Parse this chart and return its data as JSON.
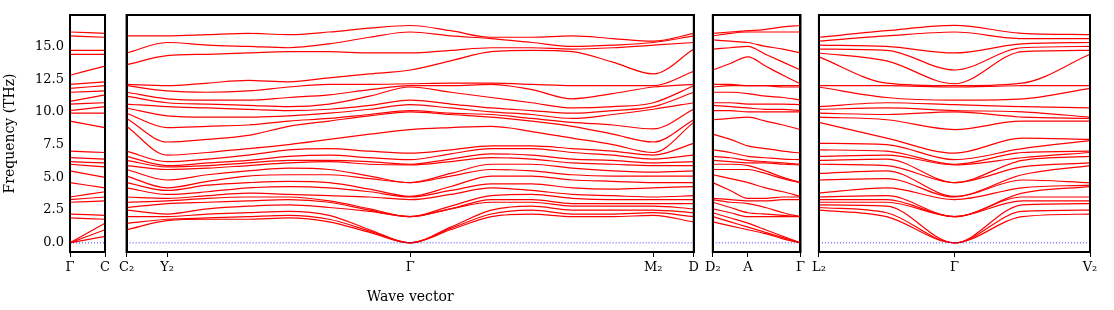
{
  "chart_data": [
    {
      "type": "line",
      "ylabel": "Frequency (THz)",
      "categories": [
        "Γ",
        "C"
      ],
      "ylim": [
        -0.7,
        17.4
      ],
      "yticks": [
        {
          "value": 0,
          "label": "0.0"
        },
        {
          "value": 2.5,
          "label": "2.5"
        },
        {
          "value": 5,
          "label": "5.0"
        },
        {
          "value": 7.5,
          "label": "7.5"
        },
        {
          "value": 10,
          "label": "10.0"
        },
        {
          "value": 12.5,
          "label": "12.5"
        },
        {
          "value": 15,
          "label": "15.0"
        }
      ],
      "grid": false,
      "legend": false,
      "marker": "none",
      "ref_lines": [
        {
          "axis": "y",
          "value": 0,
          "color": "#0000ff",
          "line_style": "dotted"
        }
      ],
      "series": [
        {
          "color": "#ff0000",
          "values": [
            0,
            0.5
          ]
        },
        {
          "color": "#ff0000",
          "values": [
            0,
            1.0
          ]
        },
        {
          "color": "#ff0000",
          "values": [
            0,
            1.5
          ]
        },
        {
          "color": "#ff0000",
          "values": [
            1.9,
            1.8
          ]
        },
        {
          "color": "#ff0000",
          "values": [
            2.2,
            2.1
          ]
        },
        {
          "color": "#ff0000",
          "values": [
            3.1,
            3.2
          ]
        },
        {
          "color": "#ff0000",
          "values": [
            3.3,
            3.5
          ]
        },
        {
          "color": "#ff0000",
          "values": [
            3.5,
            3.9
          ]
        },
        {
          "color": "#ff0000",
          "values": [
            4.6,
            4.2
          ]
        },
        {
          "color": "#ff0000",
          "values": [
            5.5,
            5.0
          ]
        },
        {
          "color": "#ff0000",
          "values": [
            6.0,
            5.8
          ]
        },
        {
          "color": "#ff0000",
          "values": [
            6.2,
            6.1
          ]
        },
        {
          "color": "#ff0000",
          "values": [
            6.5,
            6.4
          ]
        },
        {
          "color": "#ff0000",
          "values": [
            7.0,
            6.9
          ]
        },
        {
          "color": "#ff0000",
          "values": [
            9.3,
            8.8
          ]
        },
        {
          "color": "#ff0000",
          "values": [
            9.9,
            9.9
          ]
        },
        {
          "color": "#ff0000",
          "values": [
            10.1,
            10.4
          ]
        },
        {
          "color": "#ff0000",
          "values": [
            10.6,
            10.7
          ]
        },
        {
          "color": "#ff0000",
          "values": [
            10.8,
            11.3
          ]
        },
        {
          "color": "#ff0000",
          "values": [
            11.5,
            11.6
          ]
        },
        {
          "color": "#ff0000",
          "values": [
            11.8,
            12.0
          ]
        },
        {
          "color": "#ff0000",
          "values": [
            12.1,
            12.3
          ]
        },
        {
          "color": "#ff0000",
          "values": [
            12.8,
            13.5
          ]
        },
        {
          "color": "#ff0000",
          "values": [
            14.4,
            14.4
          ]
        },
        {
          "color": "#ff0000",
          "values": [
            14.7,
            14.7
          ]
        },
        {
          "color": "#ff0000",
          "values": [
            15.8,
            15.7
          ]
        },
        {
          "color": "#ff0000",
          "values": [
            16.1,
            16.0
          ]
        }
      ]
    },
    {
      "type": "line",
      "xlabel": "Wave vector",
      "categories": [
        "C₂",
        "Y₂",
        null,
        null,
        null,
        null,
        null,
        "Γ",
        null,
        null,
        null,
        null,
        null,
        "M₂",
        "D"
      ],
      "ylim": [
        -0.7,
        17.4
      ],
      "yticks": [
        {
          "value": 0,
          "label": null
        },
        {
          "value": 2.5,
          "label": null
        },
        {
          "value": 5,
          "label": null
        },
        {
          "value": 7.5,
          "label": null
        },
        {
          "value": 10,
          "label": null
        },
        {
          "value": 12.5,
          "label": null
        },
        {
          "value": 15,
          "label": null
        }
      ],
      "tick_labels": "x",
      "grid": false,
      "legend": false,
      "marker": "none",
      "ref_lines": [
        {
          "axis": "y",
          "value": 0,
          "color": "#0000ff",
          "line_style": "dotted"
        }
      ],
      "series": [
        {
          "color": "#ff0000",
          "values": [
            1.0,
            1.7,
            1.8,
            1.8,
            1.9,
            1.6,
            0.8,
            0,
            1.0,
            2.0,
            2.2,
            2.0,
            2.0,
            2.1,
            1.6
          ]
        },
        {
          "color": "#ff0000",
          "values": [
            1.5,
            1.8,
            1.9,
            2.0,
            2.1,
            1.8,
            0.9,
            0,
            1.1,
            2.2,
            2.5,
            2.2,
            2.2,
            2.3,
            2.0
          ]
        },
        {
          "color": "#ff0000",
          "values": [
            2.0,
            2.0,
            2.2,
            2.3,
            2.4,
            2.1,
            1.0,
            0,
            1.2,
            2.5,
            2.8,
            2.5,
            2.5,
            2.5,
            2.3
          ]
        },
        {
          "color": "#ff0000",
          "values": [
            2.5,
            2.2,
            2.6,
            2.8,
            2.9,
            2.7,
            2.4,
            2.0,
            2.6,
            3.1,
            3.1,
            2.8,
            2.8,
            2.8,
            2.6
          ]
        },
        {
          "color": "#ff0000",
          "values": [
            2.7,
            3.0,
            3.1,
            3.2,
            3.3,
            3.1,
            2.5,
            2.0,
            2.6,
            3.3,
            3.3,
            3.0,
            3.0,
            3.0,
            3.0
          ]
        },
        {
          "color": "#ff0000",
          "values": [
            3.1,
            3.2,
            3.4,
            3.5,
            3.5,
            3.2,
            2.6,
            2.0,
            2.8,
            3.6,
            3.7,
            3.4,
            3.3,
            3.3,
            3.3
          ]
        },
        {
          "color": "#ff0000",
          "values": [
            3.5,
            3.4,
            3.6,
            3.8,
            3.7,
            3.6,
            3.5,
            3.3,
            3.7,
            4.2,
            4.0,
            3.7,
            3.6,
            3.5,
            3.6
          ]
        },
        {
          "color": "#ff0000",
          "values": [
            4.2,
            3.7,
            3.9,
            4.2,
            4.3,
            4.2,
            3.9,
            3.5,
            4.0,
            4.5,
            4.5,
            4.2,
            4.1,
            4.2,
            4.3
          ]
        },
        {
          "color": "#ff0000",
          "values": [
            4.6,
            4.0,
            4.4,
            4.6,
            4.7,
            4.6,
            4.1,
            3.55,
            4.3,
            5.1,
            5.1,
            4.8,
            4.7,
            4.6,
            4.6
          ]
        },
        {
          "color": "#ff0000",
          "values": [
            5.1,
            4.2,
            4.7,
            5.1,
            5.2,
            5.2,
            4.9,
            4.6,
            5.1,
            5.6,
            5.5,
            5.2,
            5.1,
            5.1,
            5.1
          ]
        },
        {
          "color": "#ff0000",
          "values": [
            5.6,
            4.8,
            5.2,
            5.5,
            5.7,
            5.6,
            5.1,
            4.6,
            5.3,
            6.0,
            6.0,
            5.7,
            5.5,
            5.4,
            5.5
          ]
        },
        {
          "color": "#ff0000",
          "values": [
            5.9,
            5.6,
            5.7,
            5.9,
            6.1,
            6.2,
            6.0,
            5.95,
            6.2,
            6.5,
            6.4,
            6.1,
            6.0,
            5.9,
            5.9
          ]
        },
        {
          "color": "#ff0000",
          "values": [
            6.3,
            5.8,
            5.9,
            6.1,
            6.3,
            6.3,
            6.2,
            6.0,
            6.4,
            6.8,
            6.7,
            6.4,
            6.3,
            6.1,
            6.2
          ]
        },
        {
          "color": "#ff0000",
          "values": [
            6.6,
            5.9,
            6.1,
            6.3,
            6.6,
            6.7,
            6.5,
            6.35,
            6.8,
            7.2,
            7.2,
            6.9,
            6.7,
            6.4,
            6.7
          ]
        },
        {
          "color": "#ff0000",
          "values": [
            7.0,
            6.2,
            6.4,
            6.7,
            7.1,
            7.2,
            7.0,
            6.85,
            7.1,
            7.4,
            7.4,
            7.2,
            7.0,
            6.7,
            7.6
          ]
        },
        {
          "color": "#ff0000",
          "values": [
            8.9,
            6.7,
            6.9,
            7.2,
            7.5,
            7.9,
            8.3,
            8.65,
            8.8,
            8.9,
            8.5,
            8.0,
            7.5,
            6.9,
            9.2
          ]
        },
        {
          "color": "#ff0000",
          "values": [
            9.5,
            7.7,
            7.9,
            8.2,
            8.9,
            9.3,
            9.7,
            10.0,
            9.8,
            9.6,
            9.3,
            8.9,
            8.3,
            7.7,
            9.4
          ]
        },
        {
          "color": "#ff0000",
          "values": [
            9.9,
            8.8,
            8.9,
            9.0,
            9.3,
            9.5,
            9.8,
            10.1,
            9.9,
            9.8,
            9.5,
            9.2,
            9.0,
            8.7,
            10.2
          ]
        },
        {
          "color": "#ff0000",
          "values": [
            10.3,
            9.7,
            9.6,
            9.6,
            9.7,
            9.9,
            10.2,
            10.55,
            10.3,
            10.0,
            9.8,
            9.5,
            9.8,
            10.2,
            10.7
          ]
        },
        {
          "color": "#ff0000",
          "values": [
            10.6,
            10.4,
            10.3,
            10.2,
            10.1,
            10.2,
            10.5,
            10.9,
            10.6,
            10.3,
            10.1,
            9.9,
            10.1,
            10.4,
            11.5
          ]
        },
        {
          "color": "#ff0000",
          "values": [
            11.2,
            10.7,
            10.6,
            10.5,
            10.4,
            10.6,
            11.2,
            11.9,
            11.5,
            11.1,
            10.7,
            10.3,
            10.4,
            10.7,
            12.0
          ]
        },
        {
          "color": "#ff0000",
          "values": [
            11.5,
            11.0,
            10.9,
            10.9,
            11.1,
            11.3,
            11.7,
            12.0,
            12.0,
            12.1,
            11.7,
            11.0,
            11.4,
            11.9,
            12.1
          ]
        },
        {
          "color": "#ff0000",
          "values": [
            12.0,
            11.6,
            11.5,
            11.6,
            11.9,
            12.1,
            12.1,
            12.15,
            12.2,
            12.2,
            12.1,
            12.0,
            12.0,
            12.0,
            13.1
          ]
        },
        {
          "color": "#ff0000",
          "values": [
            12.1,
            12.0,
            12.2,
            12.4,
            12.3,
            12.6,
            12.9,
            13.2,
            13.9,
            14.6,
            14.7,
            14.6,
            13.8,
            12.9,
            14.8
          ]
        },
        {
          "color": "#ff0000",
          "values": [
            13.6,
            14.3,
            14.4,
            14.5,
            14.6,
            14.6,
            14.5,
            14.5,
            14.7,
            14.9,
            14.9,
            14.8,
            14.9,
            15.1,
            15.3
          ]
        },
        {
          "color": "#ff0000",
          "values": [
            14.5,
            15.3,
            15.1,
            15.0,
            14.9,
            15.2,
            15.7,
            16.1,
            15.8,
            15.6,
            15.3,
            15.0,
            15.1,
            15.3,
            15.8
          ]
        },
        {
          "color": "#ff0000",
          "values": [
            15.8,
            15.8,
            15.9,
            16.0,
            15.9,
            16.1,
            16.4,
            16.6,
            16.2,
            15.7,
            15.7,
            15.8,
            15.6,
            15.4,
            16.0
          ]
        }
      ]
    },
    {
      "type": "line",
      "categories": [
        "D₂",
        null,
        "A",
        null,
        null,
        "Γ"
      ],
      "ylim": [
        -0.7,
        17.4
      ],
      "yticks": [
        {
          "value": 0,
          "label": null
        },
        {
          "value": 2.5,
          "label": null
        },
        {
          "value": 5,
          "label": null
        },
        {
          "value": 7.5,
          "label": null
        },
        {
          "value": 10,
          "label": null
        },
        {
          "value": 12.5,
          "label": null
        },
        {
          "value": 15,
          "label": null
        }
      ],
      "tick_labels": "x",
      "grid": false,
      "legend": false,
      "marker": "none",
      "ref_lines": [
        {
          "axis": "y",
          "value": 0,
          "color": "#0000ff",
          "line_style": "dotted"
        }
      ],
      "series": [
        {
          "color": "#ff0000",
          "values": [
            1.6,
            1.3,
            1.0,
            0.7,
            0.3,
            0
          ]
        },
        {
          "color": "#ff0000",
          "values": [
            2.0,
            1.6,
            1.2,
            0.8,
            0.4,
            0
          ]
        },
        {
          "color": "#ff0000",
          "values": [
            2.3,
            1.9,
            1.5,
            1.0,
            0.5,
            0
          ]
        },
        {
          "color": "#ff0000",
          "values": [
            2.6,
            2.3,
            2.0,
            2.0,
            2.0,
            2.0
          ]
        },
        {
          "color": "#ff0000",
          "values": [
            3.1,
            2.7,
            2.3,
            2.2,
            2.1,
            2.0
          ]
        },
        {
          "color": "#ff0000",
          "values": [
            3.3,
            3.1,
            3.0,
            2.7,
            2.3,
            2.0
          ]
        },
        {
          "color": "#ff0000",
          "values": [
            3.4,
            3.3,
            3.2,
            3.2,
            3.3,
            3.3
          ]
        },
        {
          "color": "#ff0000",
          "values": [
            4.6,
            4.0,
            3.4,
            3.4,
            3.5,
            3.5
          ]
        },
        {
          "color": "#ff0000",
          "values": [
            5.2,
            4.9,
            4.6,
            4.2,
            3.9,
            3.55
          ]
        },
        {
          "color": "#ff0000",
          "values": [
            5.6,
            5.6,
            5.6,
            5.3,
            4.9,
            4.6
          ]
        },
        {
          "color": "#ff0000",
          "values": [
            6.0,
            6.0,
            5.9,
            5.5,
            5.0,
            4.6
          ]
        },
        {
          "color": "#ff0000",
          "values": [
            6.3,
            6.2,
            6.1,
            6.1,
            6.0,
            5.95
          ]
        },
        {
          "color": "#ff0000",
          "values": [
            6.6,
            6.5,
            6.3,
            6.2,
            6.1,
            6.0
          ]
        },
        {
          "color": "#ff0000",
          "values": [
            7.1,
            6.9,
            6.6,
            6.5,
            6.4,
            6.35
          ]
        },
        {
          "color": "#ff0000",
          "values": [
            8.3,
            7.9,
            7.4,
            7.2,
            7.0,
            6.85
          ]
        },
        {
          "color": "#ff0000",
          "values": [
            9.4,
            9.5,
            9.6,
            9.3,
            9.0,
            8.65
          ]
        },
        {
          "color": "#ff0000",
          "values": [
            10.1,
            10.1,
            10.0,
            10.0,
            10.0,
            10.0
          ]
        },
        {
          "color": "#ff0000",
          "values": [
            10.5,
            10.4,
            10.3,
            10.2,
            10.2,
            10.1
          ]
        },
        {
          "color": "#ff0000",
          "values": [
            10.7,
            10.7,
            10.6,
            10.6,
            10.6,
            10.55
          ]
        },
        {
          "color": "#ff0000",
          "values": [
            11.5,
            11.5,
            11.4,
            11.2,
            11.1,
            10.9
          ]
        },
        {
          "color": "#ff0000",
          "values": [
            11.9,
            12.0,
            12.0,
            12.0,
            11.9,
            11.9
          ]
        },
        {
          "color": "#ff0000",
          "values": [
            12.1,
            12.1,
            12.0,
            12.0,
            12.0,
            12.0
          ]
        },
        {
          "color": "#ff0000",
          "values": [
            13.2,
            13.7,
            14.2,
            13.5,
            12.8,
            12.15
          ]
        },
        {
          "color": "#ff0000",
          "values": [
            14.8,
            14.9,
            15.0,
            14.4,
            13.8,
            13.2
          ]
        },
        {
          "color": "#ff0000",
          "values": [
            15.5,
            15.4,
            15.3,
            15.0,
            14.8,
            14.5
          ]
        },
        {
          "color": "#ff0000",
          "values": [
            15.8,
            16.0,
            16.1,
            16.1,
            16.1,
            16.1
          ]
        },
        {
          "color": "#ff0000",
          "values": [
            16.0,
            16.1,
            16.2,
            16.3,
            16.5,
            16.6
          ]
        }
      ]
    },
    {
      "type": "line",
      "categories": [
        "L₂",
        null,
        "Γ",
        null,
        "V₂"
      ],
      "ylim": [
        -0.7,
        17.4
      ],
      "yticks": [
        {
          "value": 0,
          "label": null
        },
        {
          "value": 2.5,
          "label": null
        },
        {
          "value": 5,
          "label": null
        },
        {
          "value": 7.5,
          "label": null
        },
        {
          "value": 10,
          "label": null
        },
        {
          "value": 12.5,
          "label": null
        },
        {
          "value": 15,
          "label": null
        }
      ],
      "tick_labels": "x",
      "grid": false,
      "legend": false,
      "marker": "none",
      "ref_lines": [
        {
          "axis": "y",
          "value": 0,
          "color": "#0000ff",
          "line_style": "dotted"
        }
      ],
      "series": [
        {
          "color": "#ff0000",
          "values": [
            2.5,
            2.0,
            0,
            2.0,
            2.2
          ]
        },
        {
          "color": "#ff0000",
          "values": [
            2.7,
            2.3,
            0,
            2.4,
            2.5
          ]
        },
        {
          "color": "#ff0000",
          "values": [
            2.9,
            2.8,
            0,
            2.9,
            3.0
          ]
        },
        {
          "color": "#ff0000",
          "values": [
            3.1,
            3.1,
            2.0,
            3.2,
            3.2
          ]
        },
        {
          "color": "#ff0000",
          "values": [
            3.3,
            3.3,
            2.0,
            3.5,
            3.5
          ]
        },
        {
          "color": "#ff0000",
          "values": [
            3.5,
            3.6,
            2.0,
            3.8,
            4.3
          ]
        },
        {
          "color": "#ff0000",
          "values": [
            3.8,
            4.2,
            3.3,
            4.2,
            4.4
          ]
        },
        {
          "color": "#ff0000",
          "values": [
            4.8,
            4.9,
            3.5,
            4.8,
            4.6
          ]
        },
        {
          "color": "#ff0000",
          "values": [
            5.3,
            5.5,
            3.55,
            5.2,
            5.9
          ]
        },
        {
          "color": "#ff0000",
          "values": [
            6.0,
            5.9,
            4.6,
            5.8,
            6.1
          ]
        },
        {
          "color": "#ff0000",
          "values": [
            6.3,
            6.4,
            4.6,
            6.3,
            6.6
          ]
        },
        {
          "color": "#ff0000",
          "values": [
            6.6,
            6.7,
            5.95,
            6.5,
            6.9
          ]
        },
        {
          "color": "#ff0000",
          "values": [
            7.1,
            7.0,
            6.0,
            6.9,
            7.0
          ]
        },
        {
          "color": "#ff0000",
          "values": [
            7.6,
            7.5,
            6.35,
            7.2,
            7.8
          ]
        },
        {
          "color": "#ff0000",
          "values": [
            9.2,
            8.0,
            6.85,
            8.0,
            7.9
          ]
        },
        {
          "color": "#ff0000",
          "values": [
            9.6,
            9.4,
            8.65,
            9.3,
            9.3
          ]
        },
        {
          "color": "#ff0000",
          "values": [
            9.9,
            9.8,
            10.0,
            9.6,
            9.5
          ]
        },
        {
          "color": "#ff0000",
          "values": [
            10.2,
            10.3,
            10.1,
            10.0,
            9.6
          ]
        },
        {
          "color": "#ff0000",
          "values": [
            10.4,
            10.7,
            10.55,
            10.4,
            10.3
          ]
        },
        {
          "color": "#ff0000",
          "values": [
            11.9,
            11.1,
            10.9,
            11.0,
            11.8
          ]
        },
        {
          "color": "#ff0000",
          "values": [
            12.0,
            12.0,
            11.9,
            12.0,
            12.0
          ]
        },
        {
          "color": "#ff0000",
          "values": [
            14.2,
            12.2,
            12.0,
            12.2,
            14.4
          ]
        },
        {
          "color": "#ff0000",
          "values": [
            14.5,
            13.9,
            12.15,
            14.6,
            14.7
          ]
        },
        {
          "color": "#ff0000",
          "values": [
            14.8,
            14.7,
            13.2,
            14.9,
            15.0
          ]
        },
        {
          "color": "#ff0000",
          "values": [
            15.1,
            15.0,
            14.5,
            15.2,
            15.3
          ]
        },
        {
          "color": "#ff0000",
          "values": [
            15.4,
            15.8,
            16.1,
            15.6,
            15.6
          ]
        },
        {
          "color": "#ff0000",
          "values": [
            15.7,
            16.2,
            16.6,
            16.0,
            15.9
          ]
        }
      ]
    }
  ]
}
